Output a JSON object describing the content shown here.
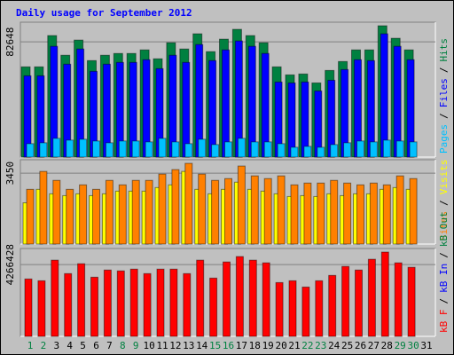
{
  "chart_data": [
    {
      "type": "bar",
      "title": "Daily usage for September 2012",
      "legend_separator": "/",
      "ylim": [
        0,
        96750
      ],
      "yticks": [
        82648
      ],
      "series": [
        {
          "name": "Pages",
          "color": "#00c0ff",
          "values": [
            9610,
            10250,
            13450,
            12170,
            12810,
            11530,
            10250,
            11530,
            11530,
            10890,
            13450,
            10890,
            9610,
            12810,
            8970,
            10890,
            13450,
            10890,
            10890,
            9610,
            7050,
            7690,
            7050,
            8970,
            10250,
            11530,
            10890,
            12170,
            11530,
            10890,
            null
          ]
        },
        {
          "name": "Files",
          "color": "#0000ff",
          "values": [
            58300,
            58300,
            79450,
            66630,
            77520,
            61510,
            66630,
            67910,
            67910,
            69840,
            63430,
            73040,
            67910,
            80730,
            69200,
            76880,
            83290,
            79450,
            74320,
            53820,
            53180,
            53820,
            47410,
            55100,
            62790,
            69840,
            69200,
            88420,
            79450,
            69840,
            null
          ]
        },
        {
          "name": "Hits",
          "color": "#008040",
          "values": [
            64710,
            64710,
            87140,
            73040,
            83930,
            69200,
            73040,
            74320,
            74320,
            76880,
            70480,
            82010,
            77520,
            88420,
            75600,
            84570,
            91620,
            87140,
            82010,
            64710,
            58940,
            59590,
            53180,
            62150,
            68550,
            76880,
            76880,
            94180,
            85210,
            76880,
            null
          ]
        }
      ]
    },
    {
      "type": "bar",
      "legend_separator": "/",
      "ylim": [
        0,
        4105
      ],
      "yticks": [
        3450
      ],
      "series": [
        {
          "name": "Sites",
          "color": "#ff8000",
          "values": [
            2664,
            3537,
            3101,
            2664,
            2882,
            2664,
            3101,
            2882,
            3101,
            3101,
            3406,
            3625,
            3930,
            3406,
            3101,
            3188,
            3799,
            3319,
            3188,
            3319,
            2882,
            2970,
            2970,
            3101,
            2970,
            2882,
            2970,
            2882,
            3319,
            3188,
            null
          ]
        },
        {
          "name": "Visits",
          "color": "#ffff00",
          "values": [
            2009,
            2664,
            2446,
            2358,
            2446,
            2358,
            2446,
            2577,
            2577,
            2577,
            2751,
            2882,
            3537,
            2664,
            2446,
            2664,
            3013,
            2664,
            2577,
            2446,
            2315,
            2358,
            2315,
            2446,
            2358,
            2446,
            2446,
            2664,
            2751,
            2664,
            null
          ]
        }
      ]
    },
    {
      "type": "bar",
      "legend_separator": "/",
      "ylim": [
        0,
        5226400
      ],
      "yticks": [
        4266428
      ],
      "series": [
        {
          "name": "kB F",
          "color": "#ff0000",
          "values": [
            3413100,
            3306500,
            4533000,
            3733100,
            4319700,
            3519800,
            3946400,
            3893100,
            3999800,
            3733100,
            3999800,
            3999800,
            3733100,
            4533000,
            3466500,
            4426400,
            4746400,
            4533000,
            4373100,
            3199800,
            3306500,
            2933200,
            3306500,
            3626400,
            4159700,
            3946400,
            4586400,
            5013000,
            4373100,
            4106400,
            null
          ]
        }
      ],
      "legend_only": [
        {
          "name": "kB In",
          "color": "#0000ff"
        },
        {
          "name": "kB Out",
          "color": "#008040"
        }
      ],
      "categories": [
        "1",
        "2",
        "3",
        "4",
        "5",
        "6",
        "7",
        "8",
        "9",
        "10",
        "11",
        "12",
        "13",
        "14",
        "15",
        "16",
        "17",
        "18",
        "19",
        "20",
        "21",
        "22",
        "23",
        "24",
        "25",
        "26",
        "27",
        "28",
        "29",
        "30",
        "31"
      ],
      "category_colors": [
        "#008040",
        "#008040",
        "#000000",
        "#000000",
        "#000000",
        "#000000",
        "#000000",
        "#008040",
        "#008040",
        "#000000",
        "#000000",
        "#000000",
        "#000000",
        "#000000",
        "#008040",
        "#008040",
        "#000000",
        "#000000",
        "#000000",
        "#000000",
        "#000000",
        "#008040",
        "#008040",
        "#000000",
        "#000000",
        "#000000",
        "#000000",
        "#000000",
        "#008040",
        "#008040",
        "#000000"
      ]
    }
  ]
}
